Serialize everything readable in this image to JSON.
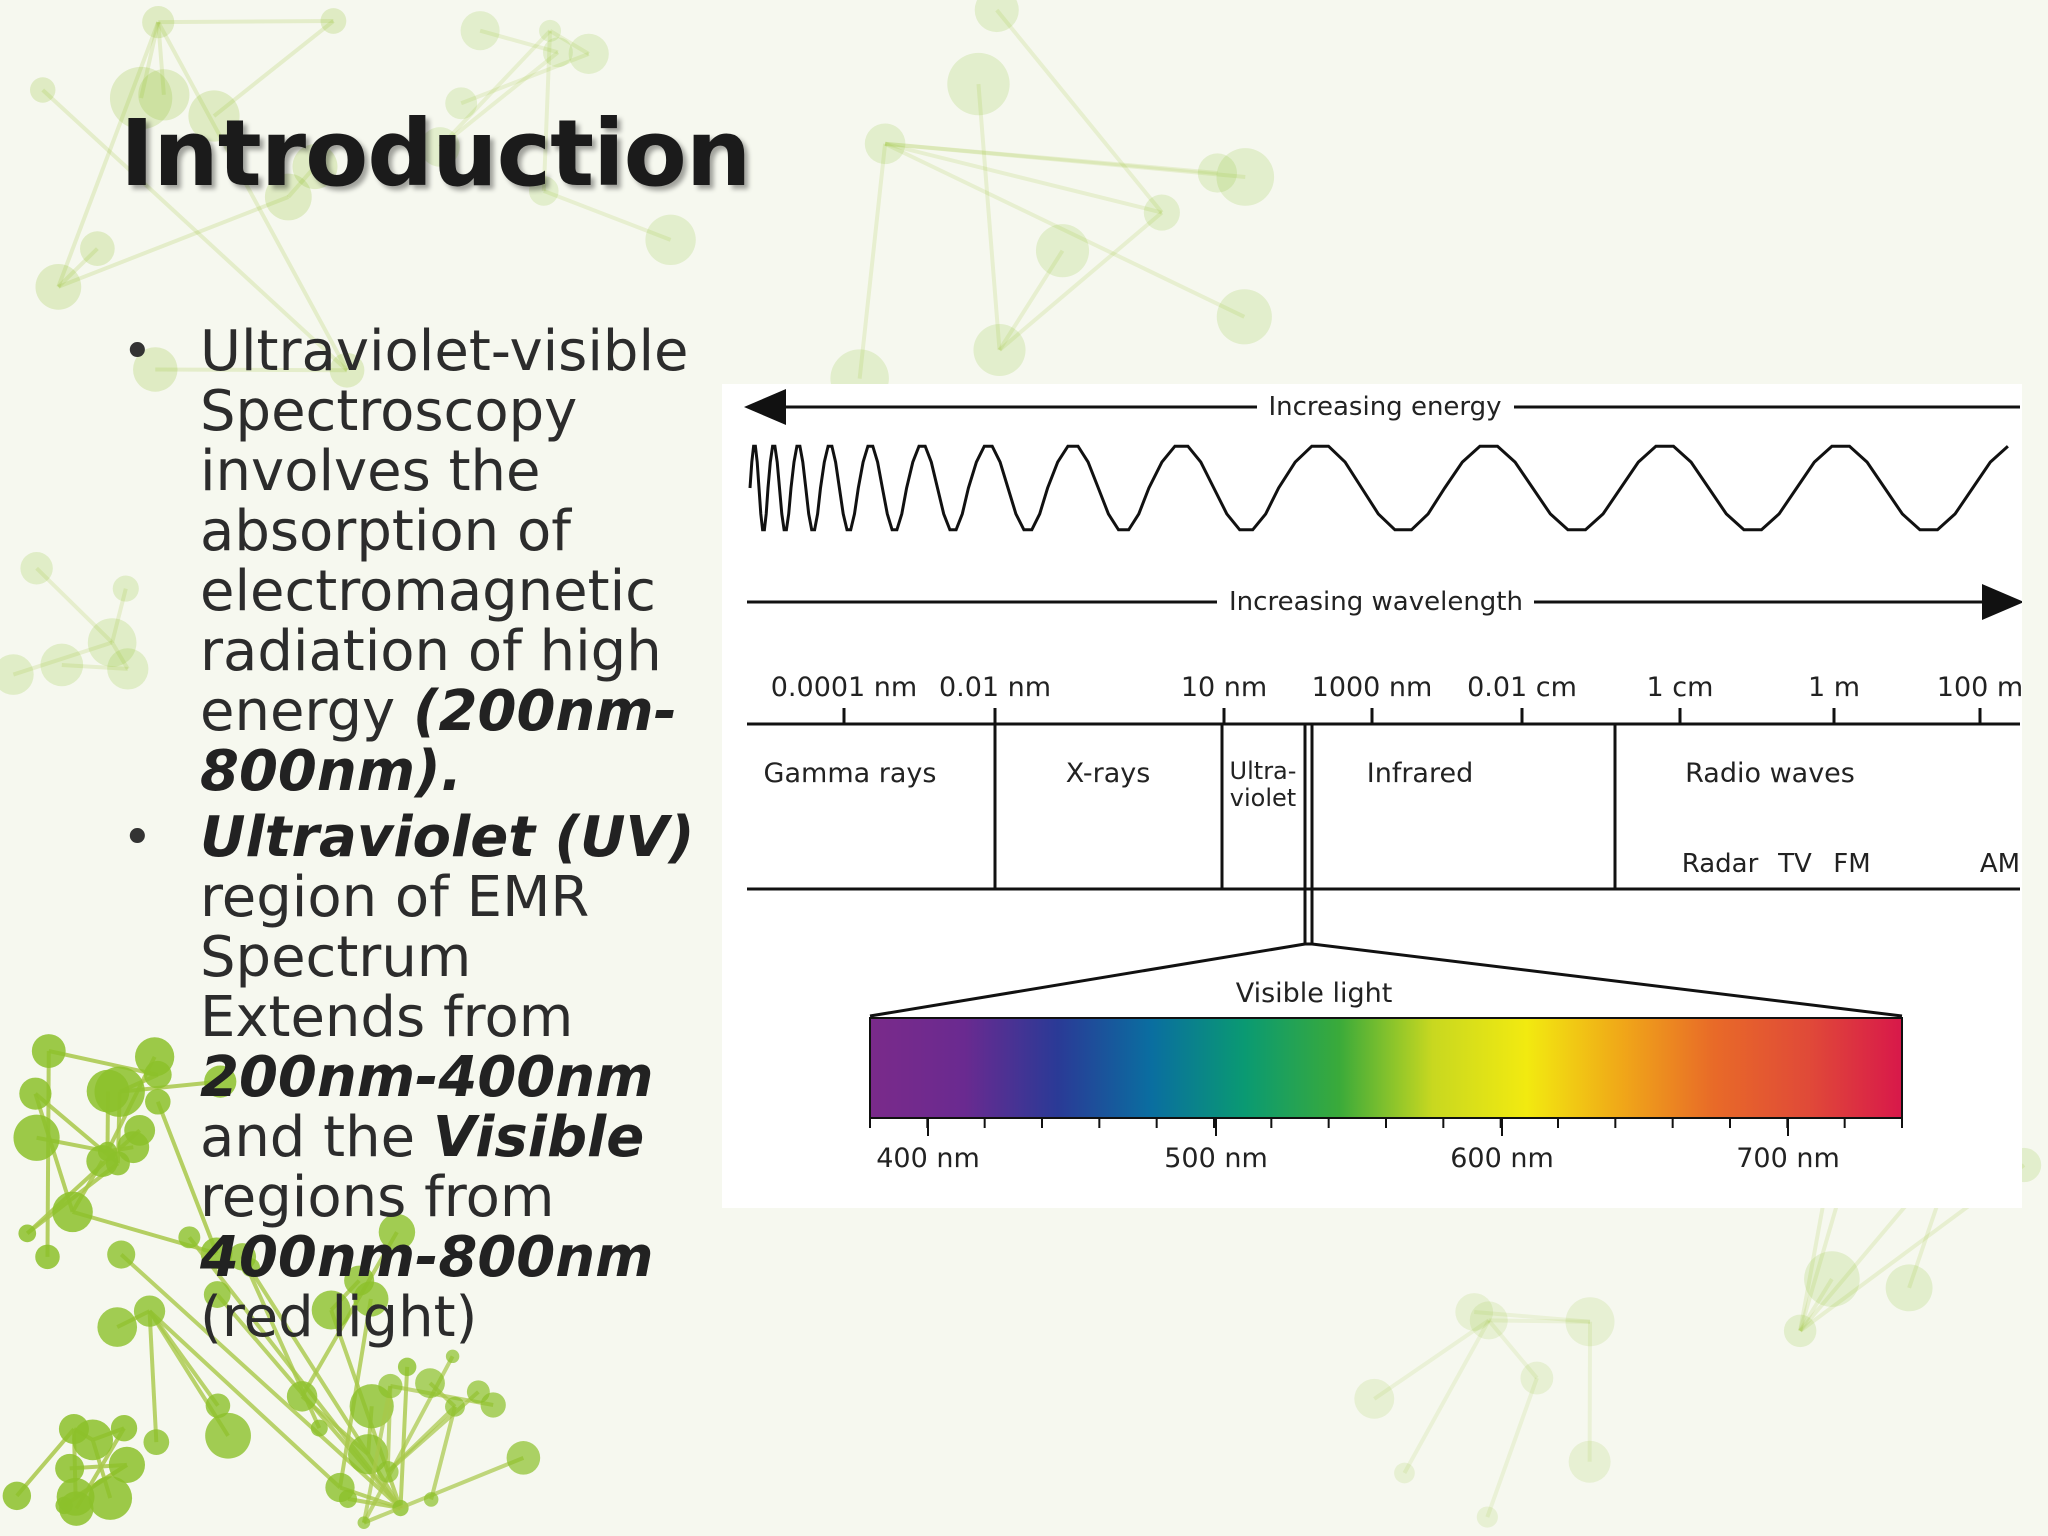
{
  "slide": {
    "title": "Introduction",
    "bullet1": {
      "text": "Ultraviolet-visible Spectroscopy involves the absorption of electromagnetic radiation of high energy",
      "emphasis": "(200nm-800nm)."
    },
    "bullet2": {
      "part1_em": "Ultraviolet (UV)",
      "part2": " region of EMR Spectrum Extends from ",
      "part3_em": "200nm-400nm",
      "part4": " and the ",
      "part5_em": "Visible",
      "part6": " regions from ",
      "part7_em": "400nm-800nm",
      "part8": " (red light)"
    }
  },
  "figure": {
    "energy_label": "Increasing energy",
    "wavelength_label": "Increasing wavelength",
    "scale_ticks": [
      "0.0001 nm",
      "0.01 nm",
      "10 nm",
      "1000 nm",
      "0.01 cm",
      "1 cm",
      "1 m",
      "100 m"
    ],
    "regions": {
      "gamma": "Gamma rays",
      "xray": "X-rays",
      "uv_line1": "Ultra-",
      "uv_line2": "violet",
      "infrared": "Infrared",
      "radio": "Radio waves"
    },
    "radio_bands": [
      "Radar",
      "TV",
      "FM",
      "AM"
    ],
    "visible_label": "Visible light",
    "visible_ticks": [
      "400 nm",
      "500 nm",
      "600 nm",
      "700 nm"
    ],
    "spectrum_colors": [
      "#7a2a8a",
      "#6a2a90",
      "#2a3a96",
      "#0a6ea0",
      "#0a9a72",
      "#3aaa3a",
      "#c8d820",
      "#f2ea10",
      "#f0a818",
      "#e86a28",
      "#e04a38",
      "#d8184a"
    ]
  }
}
